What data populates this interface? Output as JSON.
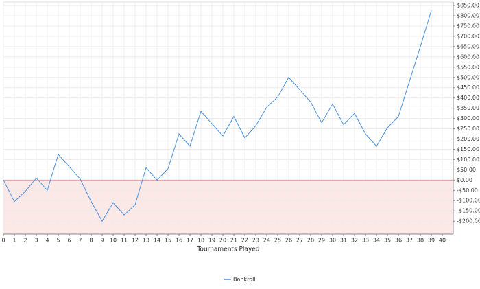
{
  "chart_data": {
    "type": "line",
    "x_label": "Tournaments Played",
    "x": [
      0,
      1,
      2,
      3,
      4,
      5,
      6,
      7,
      8,
      9,
      10,
      11,
      12,
      13,
      14,
      15,
      16,
      17,
      18,
      19,
      20,
      21,
      22,
      23,
      24,
      25,
      26,
      27,
      28,
      29,
      30,
      31,
      32,
      33,
      34,
      35,
      36,
      37,
      38,
      39
    ],
    "series": [
      {
        "name": "Bankroll",
        "color": "#4a90d9",
        "values": [
          0,
          -105,
          -55,
          10,
          -50,
          125,
          65,
          5,
          -105,
          -200,
          -110,
          -170,
          -120,
          60,
          0,
          55,
          225,
          165,
          335,
          275,
          215,
          310,
          205,
          265,
          355,
          405,
          500,
          440,
          380,
          280,
          370,
          270,
          325,
          225,
          165,
          255,
          310,
          480,
          650,
          825
        ]
      }
    ],
    "xlim": [
      0,
      41
    ],
    "xticks": [
      0,
      1,
      2,
      3,
      4,
      5,
      6,
      7,
      8,
      9,
      10,
      11,
      12,
      13,
      14,
      15,
      16,
      17,
      18,
      19,
      20,
      21,
      22,
      23,
      24,
      25,
      26,
      27,
      28,
      29,
      30,
      31,
      32,
      33,
      34,
      35,
      36,
      37,
      38,
      39,
      40
    ],
    "ylim": [
      -263,
      867
    ],
    "yticks": [
      {
        "value": -200,
        "label": "-$200.00"
      },
      {
        "value": -150,
        "label": "-$150.00"
      },
      {
        "value": -100,
        "label": "-$100.00"
      },
      {
        "value": -50,
        "label": "-$50.00"
      },
      {
        "value": 0,
        "label": "$0.00"
      },
      {
        "value": 50,
        "label": "$50.00"
      },
      {
        "value": 100,
        "label": "$100.00"
      },
      {
        "value": 150,
        "label": "$150.00"
      },
      {
        "value": 200,
        "label": "$200.00"
      },
      {
        "value": 250,
        "label": "$250.00"
      },
      {
        "value": 300,
        "label": "$300.00"
      },
      {
        "value": 350,
        "label": "$350.00"
      },
      {
        "value": 400,
        "label": "$400.00"
      },
      {
        "value": 450,
        "label": "$450.00"
      },
      {
        "value": 500,
        "label": "$500.00"
      },
      {
        "value": 550,
        "label": "$550.00"
      },
      {
        "value": 600,
        "label": "$600.00"
      },
      {
        "value": 650,
        "label": "$650.00"
      },
      {
        "value": 700,
        "label": "$700.00"
      },
      {
        "value": 750,
        "label": "$750.00"
      },
      {
        "value": 800,
        "label": "$800.00"
      },
      {
        "value": 850,
        "label": "$850.00"
      }
    ],
    "y_axis_side": "right",
    "grid": true,
    "legend": "bottom",
    "negative_fill": "#fde8e8",
    "zero_line_color": "#d9a0a0"
  }
}
